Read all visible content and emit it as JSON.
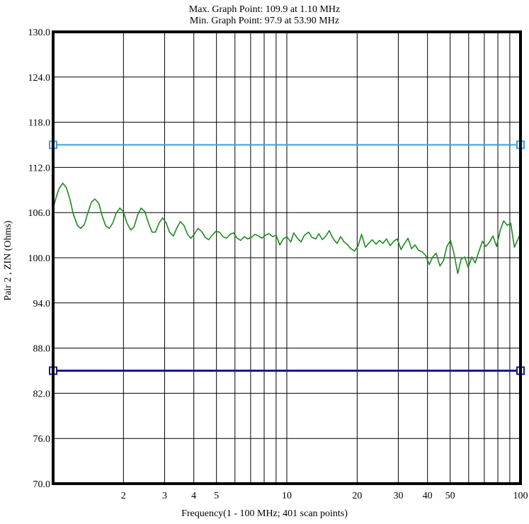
{
  "header": {
    "max_line": "Max. Graph Point: 109.9 at 1.10 MHz",
    "min_line": "Min. Graph Point: 97.9 at 53.90 MHz"
  },
  "chart_data": {
    "type": "line",
    "xlabel": "Frequency(1 - 100 MHz; 401 scan points)",
    "ylabel": "Pair 2 , ZIN (Ohms)",
    "x_scale": "log",
    "xlim": [
      1,
      100
    ],
    "ylim": [
      70,
      130
    ],
    "yticks": [
      "70.0",
      "76.0",
      "82.0",
      "88.0",
      "94.0",
      "100.0",
      "106.0",
      "112.0",
      "118.0",
      "124.0",
      "130.0"
    ],
    "xticks": [
      {
        "value": 2,
        "label": "2"
      },
      {
        "value": 3,
        "label": "3"
      },
      {
        "value": 4,
        "label": "4"
      },
      {
        "value": 5,
        "label": "5"
      },
      {
        "value": 10,
        "label": "10"
      },
      {
        "value": 20,
        "label": "20"
      },
      {
        "value": 30,
        "label": "30"
      },
      {
        "value": 40,
        "label": "40"
      },
      {
        "value": 50,
        "label": "50"
      },
      {
        "value": 100,
        "label": "100"
      }
    ],
    "grid": true,
    "limit_lines": [
      {
        "value": 115,
        "color": "#3aa0e0"
      },
      {
        "value": 85,
        "color": "#1a1a8c"
      }
    ],
    "series": [
      {
        "color": "#1e8a1e",
        "points": [
          [
            1.0,
            106.5
          ],
          [
            1.03,
            108.0
          ],
          [
            1.06,
            109.2
          ],
          [
            1.1,
            109.9
          ],
          [
            1.14,
            109.3
          ],
          [
            1.18,
            107.8
          ],
          [
            1.22,
            105.8
          ],
          [
            1.27,
            104.3
          ],
          [
            1.31,
            103.9
          ],
          [
            1.36,
            104.4
          ],
          [
            1.41,
            106.0
          ],
          [
            1.46,
            107.4
          ],
          [
            1.51,
            107.8
          ],
          [
            1.57,
            107.2
          ],
          [
            1.62,
            105.6
          ],
          [
            1.68,
            104.2
          ],
          [
            1.74,
            103.9
          ],
          [
            1.8,
            104.6
          ],
          [
            1.86,
            105.9
          ],
          [
            1.93,
            106.6
          ],
          [
            2.0,
            106.1
          ],
          [
            2.07,
            104.6
          ],
          [
            2.15,
            103.7
          ],
          [
            2.22,
            104.1
          ],
          [
            2.3,
            105.7
          ],
          [
            2.38,
            106.6
          ],
          [
            2.47,
            106.1
          ],
          [
            2.56,
            104.6
          ],
          [
            2.65,
            103.4
          ],
          [
            2.74,
            103.4
          ],
          [
            2.84,
            104.6
          ],
          [
            2.94,
            105.3
          ],
          [
            3.05,
            104.6
          ],
          [
            3.15,
            103.4
          ],
          [
            3.27,
            102.9
          ],
          [
            3.38,
            103.9
          ],
          [
            3.5,
            104.8
          ],
          [
            3.63,
            104.3
          ],
          [
            3.76,
            103.1
          ],
          [
            3.89,
            102.6
          ],
          [
            4.03,
            103.2
          ],
          [
            4.17,
            103.9
          ],
          [
            4.32,
            103.5
          ],
          [
            4.48,
            102.7
          ],
          [
            4.63,
            102.4
          ],
          [
            4.8,
            103.0
          ],
          [
            4.97,
            103.5
          ],
          [
            5.15,
            103.4
          ],
          [
            5.33,
            102.8
          ],
          [
            5.52,
            102.6
          ],
          [
            5.72,
            103.1
          ],
          [
            5.92,
            103.3
          ],
          [
            6.13,
            102.6
          ],
          [
            6.35,
            102.3
          ],
          [
            6.58,
            102.8
          ],
          [
            6.81,
            102.5
          ],
          [
            7.05,
            102.7
          ],
          [
            7.3,
            103.1
          ],
          [
            7.56,
            102.9
          ],
          [
            7.83,
            102.6
          ],
          [
            8.11,
            103.0
          ],
          [
            8.4,
            103.2
          ],
          [
            8.7,
            102.8
          ],
          [
            9.0,
            103.0
          ],
          [
            9.33,
            101.7
          ],
          [
            9.66,
            102.5
          ],
          [
            10.0,
            102.8
          ],
          [
            10.4,
            102.1
          ],
          [
            10.7,
            103.3
          ],
          [
            11.1,
            102.6
          ],
          [
            11.5,
            102.1
          ],
          [
            11.9,
            103.0
          ],
          [
            12.4,
            103.4
          ],
          [
            12.8,
            102.7
          ],
          [
            13.3,
            102.5
          ],
          [
            13.7,
            103.2
          ],
          [
            14.2,
            102.4
          ],
          [
            14.7,
            102.9
          ],
          [
            15.2,
            103.6
          ],
          [
            15.8,
            102.5
          ],
          [
            16.4,
            101.9
          ],
          [
            17.0,
            102.8
          ],
          [
            17.6,
            102.1
          ],
          [
            18.2,
            101.7
          ],
          [
            18.8,
            101.2
          ],
          [
            19.5,
            100.9
          ],
          [
            20.2,
            101.6
          ],
          [
            20.9,
            103.1
          ],
          [
            21.7,
            101.4
          ],
          [
            22.4,
            101.9
          ],
          [
            23.2,
            102.4
          ],
          [
            24.1,
            101.8
          ],
          [
            24.9,
            102.3
          ],
          [
            25.8,
            101.9
          ],
          [
            26.7,
            102.5
          ],
          [
            27.7,
            101.6
          ],
          [
            28.7,
            102.2
          ],
          [
            29.7,
            102.5
          ],
          [
            30.8,
            101.1
          ],
          [
            31.9,
            101.9
          ],
          [
            33.0,
            102.6
          ],
          [
            34.2,
            101.2
          ],
          [
            35.4,
            101.7
          ],
          [
            36.6,
            101.0
          ],
          [
            37.9,
            100.8
          ],
          [
            39.3,
            100.3
          ],
          [
            40.7,
            99.1
          ],
          [
            42.1,
            100.1
          ],
          [
            43.6,
            100.6
          ],
          [
            45.2,
            98.9
          ],
          [
            46.8,
            99.6
          ],
          [
            48.4,
            101.5
          ],
          [
            50.2,
            102.3
          ],
          [
            51.9,
            100.6
          ],
          [
            53.9,
            97.9
          ],
          [
            55.7,
            99.8
          ],
          [
            57.7,
            100.1
          ],
          [
            59.7,
            98.7
          ],
          [
            61.9,
            100.1
          ],
          [
            64.0,
            99.3
          ],
          [
            66.3,
            100.8
          ],
          [
            68.7,
            102.2
          ],
          [
            71.1,
            101.5
          ],
          [
            73.7,
            102.1
          ],
          [
            76.3,
            102.9
          ],
          [
            79.0,
            101.5
          ],
          [
            81.8,
            103.6
          ],
          [
            84.7,
            104.9
          ],
          [
            87.7,
            104.3
          ],
          [
            90.8,
            104.6
          ],
          [
            94.1,
            101.4
          ],
          [
            97.4,
            102.4
          ],
          [
            100.0,
            103.3
          ]
        ]
      }
    ]
  }
}
